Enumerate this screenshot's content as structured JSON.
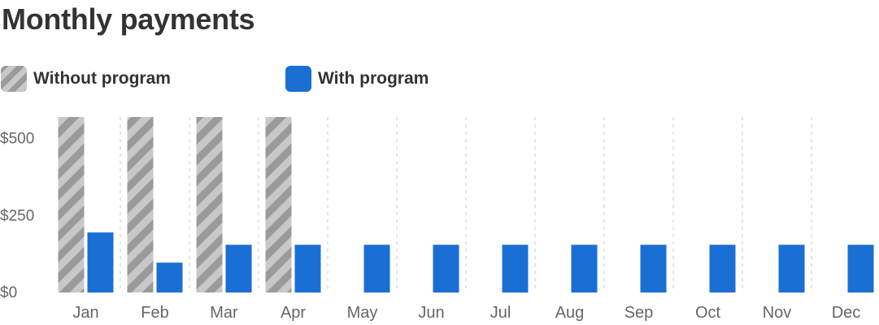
{
  "title": "Monthly payments",
  "legend": [
    {
      "label": "Without program",
      "style": "hatched",
      "colors": [
        "#9a9a9a",
        "#c8c8c8"
      ]
    },
    {
      "label": "With program",
      "style": "solid",
      "color": "#1a6fd4"
    }
  ],
  "chart_data": {
    "type": "bar",
    "title": "Monthly payments",
    "xlabel": "",
    "ylabel": "",
    "categories": [
      "Jan",
      "Feb",
      "Mar",
      "Apr",
      "May",
      "Jun",
      "Jul",
      "Aug",
      "Sep",
      "Oct",
      "Nov",
      "Dec"
    ],
    "series": [
      {
        "name": "Without program",
        "values": [
          570,
          570,
          570,
          570,
          null,
          null,
          null,
          null,
          null,
          null,
          null,
          null
        ],
        "color": "#9a9a9a",
        "pattern": "hatched"
      },
      {
        "name": "With program",
        "values": [
          195,
          97,
          155,
          155,
          155,
          155,
          155,
          155,
          155,
          155,
          155,
          155
        ],
        "color": "#1a6fd4"
      }
    ],
    "yticks": [
      0,
      250,
      500
    ],
    "ytick_labels": [
      "$0",
      "$250",
      "$500"
    ],
    "ylim": [
      0,
      570
    ],
    "grid": "vertical dashed separators between months",
    "legend_position": "top-left"
  }
}
